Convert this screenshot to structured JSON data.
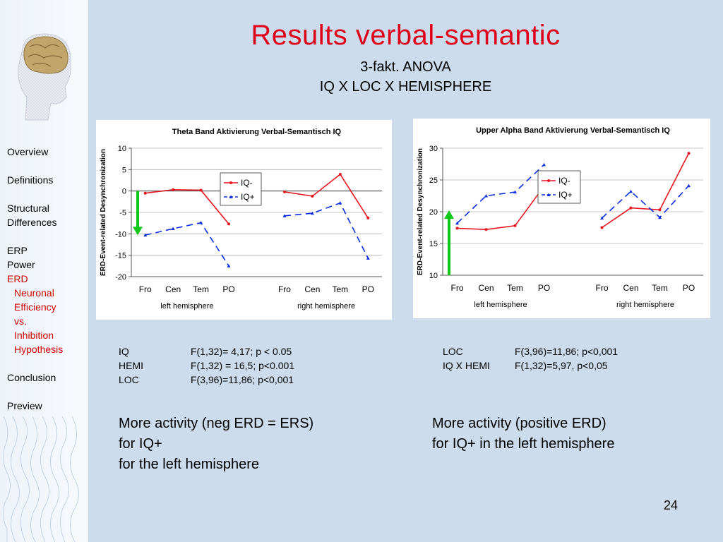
{
  "slide": {
    "title": "Results verbal-semantic",
    "subtitle_1": "3-fakt. ANOVA",
    "subtitle_2": "IQ X LOC X HEMISPHERE",
    "page_number": "24"
  },
  "sidebar": {
    "items": [
      {
        "label": "Overview"
      },
      {
        "label": "Definitions"
      },
      {
        "label": "Structural"
      },
      {
        "label": "Differences"
      },
      {
        "label": "ERP"
      },
      {
        "label": "Power"
      },
      {
        "label": "ERD"
      },
      {
        "label": "Neuronal"
      },
      {
        "label": "Efficiency"
      },
      {
        "label": "vs."
      },
      {
        "label": "Inhibition"
      },
      {
        "label": "Hypothesis"
      },
      {
        "label": "Conclusion"
      },
      {
        "label": "Preview"
      }
    ]
  },
  "stats_left": [
    {
      "term": "IQ",
      "value": "F(1,32)= 4,17; p < 0.05"
    },
    {
      "term": "HEMI",
      "value": "F(1,32) = 16,5; p<0.001"
    },
    {
      "term": "LOC",
      "value": "F(3,96)=11,86; p<0,001"
    }
  ],
  "stats_right": [
    {
      "term": "LOC",
      "value": "F(3,96)=11,86; p<0,001"
    },
    {
      "term": "IQ X HEMI",
      "value": "F(1,32)=5,97, p<0,05"
    }
  ],
  "conclusion_left": [
    "More activity (neg ERD = ERS)",
    "for IQ+",
    "for the left hemisphere"
  ],
  "conclusion_right": [
    "More activity (positive ERD)",
    "for IQ+ in the left hemisphere"
  ],
  "chart_data": [
    {
      "type": "line",
      "title": "Theta Band Aktivierung Verbal-Semantisch IQ",
      "ylabel": "ERD-Event-related Desynchronization",
      "xlabel": "",
      "groups": [
        "left hemisphere",
        "right hemisphere"
      ],
      "categories": [
        "Fro",
        "Cen",
        "Tem",
        "PO"
      ],
      "ylim": [
        -20,
        10
      ],
      "yticks": [
        10,
        5,
        0,
        -5,
        -10,
        -15,
        -20
      ],
      "legend": "top-center",
      "grid": true,
      "series": [
        {
          "name": "IQ-",
          "color": "#e8131d",
          "style": "solid",
          "left": [
            -0.5,
            0.3,
            0.2,
            -7.7
          ],
          "right": [
            -0.2,
            -1.2,
            3.9,
            -6.3
          ]
        },
        {
          "name": "IQ+",
          "color": "#0b2fe0",
          "style": "dashed",
          "left": [
            -10.3,
            -8.8,
            -7.4,
            -17.5
          ],
          "right": [
            -5.8,
            -5.2,
            -2.8,
            -15.7
          ]
        }
      ],
      "arrow": {
        "direction": "down",
        "color": "#11c81a",
        "from": 0,
        "to": -10
      }
    },
    {
      "type": "line",
      "title": "Upper Alpha Band Aktivierung Verbal-Semantisch IQ",
      "ylabel": "ERD-Event-related Desynchronization",
      "xlabel": "",
      "groups": [
        "left hemisphere",
        "right hemisphere"
      ],
      "categories": [
        "Fro",
        "Cen",
        "Tem",
        "PO"
      ],
      "ylim": [
        10,
        30
      ],
      "yticks": [
        30,
        25,
        20,
        15,
        10
      ],
      "legend": "top-right",
      "grid": true,
      "series": [
        {
          "name": "IQ-",
          "color": "#e8131d",
          "style": "solid",
          "left": [
            17.4,
            17.2,
            17.8,
            24.0
          ],
          "right": [
            17.5,
            20.6,
            20.3,
            29.2
          ]
        },
        {
          "name": "IQ+",
          "color": "#0b2fe0",
          "style": "dashed",
          "left": [
            18.2,
            22.5,
            23.1,
            27.4
          ],
          "right": [
            19.0,
            23.2,
            19.1,
            24.1
          ]
        }
      ],
      "arrow": {
        "direction": "up",
        "color": "#11c81a",
        "from": 10,
        "to": 20
      }
    }
  ]
}
